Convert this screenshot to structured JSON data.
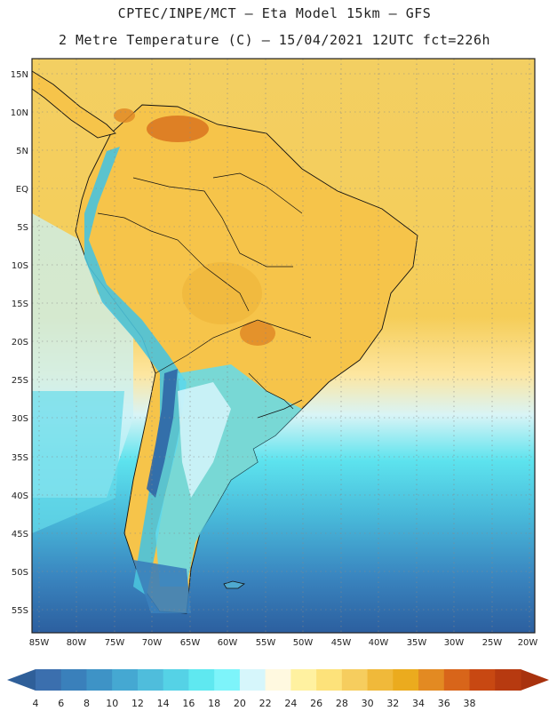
{
  "title_line1": "CPTEC/INPE/MCT –  Eta Model 15km – GFS",
  "title_line2": "2 Metre Temperature (C) – 15/04/2021 12UTC fct=226h",
  "lat_labels": [
    "15N",
    "10N",
    "5N",
    "EQ",
    "5S",
    "10S",
    "15S",
    "20S",
    "25S",
    "30S",
    "35S",
    "40S",
    "45S",
    "50S",
    "55S"
  ],
  "lon_labels": [
    "85W",
    "80W",
    "75W",
    "70W",
    "65W",
    "60W",
    "55W",
    "50W",
    "45W",
    "40W",
    "35W",
    "30W",
    "25W",
    "20W"
  ],
  "colorbar": {
    "labels": [
      "4",
      "6",
      "8",
      "10",
      "12",
      "14",
      "16",
      "18",
      "20",
      "22",
      "24",
      "26",
      "28",
      "30",
      "32",
      "34",
      "36",
      "38"
    ],
    "colors": [
      "#3b6fae",
      "#3a80bb",
      "#3e93c6",
      "#45a8d2",
      "#4fbddc",
      "#55d2e6",
      "#5fe8f0",
      "#7df4fa",
      "#d6f6fb",
      "#fff9e0",
      "#fff1a0",
      "#fde27a",
      "#f6cd5e",
      "#f0b93a",
      "#ebab1e",
      "#e38a22",
      "#d8651a",
      "#c84812",
      "#b73a10"
    ],
    "left_arrow_color": "#2f5f99",
    "right_arrow_color": "#a8320e"
  },
  "colors": {
    "deep_south": "#2e63a2",
    "ocean_cold": "#4fb5d8",
    "ocean_mid": "#62e0ee",
    "pale": "#d6f6fb",
    "warm_ocean": "#f4cf5f",
    "tropic": "#f6c546",
    "hot": "#e48b27",
    "border": "#111111"
  }
}
